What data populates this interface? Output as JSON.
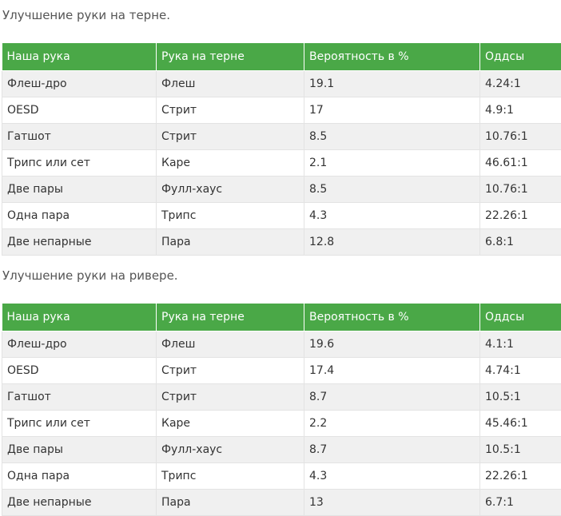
{
  "sections": [
    {
      "title": "Улучшение руки на терне.",
      "headers": [
        "Наша рука",
        "Рука на терне",
        "Вероятность в %",
        "Оддсы"
      ],
      "rows": [
        [
          "Флеш-дро",
          "Флеш",
          "19.1",
          "4.24:1"
        ],
        [
          "OESD",
          "Стрит",
          "17",
          "4.9:1"
        ],
        [
          "Гатшот",
          "Стрит",
          "8.5",
          "10.76:1"
        ],
        [
          "Трипс или сет",
          "Каре",
          "2.1",
          "46.61:1"
        ],
        [
          "Две пары",
          "Фулл-хаус",
          "8.5",
          "10.76:1"
        ],
        [
          "Одна пара",
          "Трипс",
          "4.3",
          "22.26:1"
        ],
        [
          "Две непарные",
          "Пара",
          "12.8",
          "6.8:1"
        ]
      ]
    },
    {
      "title": "Улучшение руки на ривере.",
      "headers": [
        "Наша рука",
        "Рука на терне",
        "Вероятность в %",
        "Оддсы"
      ],
      "rows": [
        [
          "Флеш-дро",
          "Флеш",
          "19.6",
          "4.1:1"
        ],
        [
          "OESD",
          "Стрит",
          "17.4",
          "4.74:1"
        ],
        [
          "Гатшот",
          "Стрит",
          "8.7",
          "10.5:1"
        ],
        [
          "Трипс или сет",
          "Каре",
          "2.2",
          "45.46:1"
        ],
        [
          "Две пары",
          "Фулл-хаус",
          "8.7",
          "10.5:1"
        ],
        [
          "Одна пара",
          "Трипс",
          "4.3",
          "22.26:1"
        ],
        [
          "Две непарные",
          "Пара",
          "13",
          "6.7:1"
        ]
      ]
    }
  ]
}
